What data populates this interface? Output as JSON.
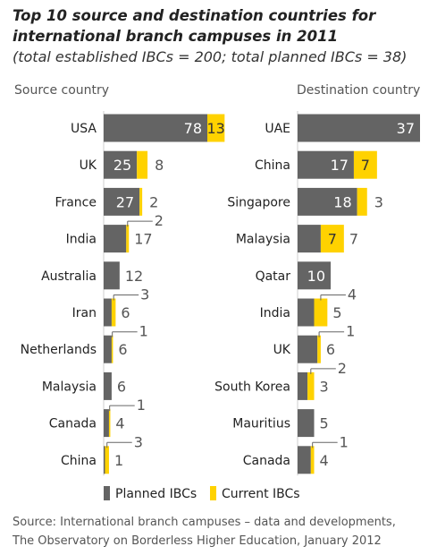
{
  "title": "Top 10 source and destination countries for international branch campuses in 2011",
  "subtitle": "(total established IBCs = 200; total planned IBCs = 38)",
  "source_country_header": "Source country",
  "destination_country_header": "Destination country",
  "legend": {
    "planned": "Planned IBCs",
    "current": "Current IBCs"
  },
  "source_note_line1": "Source: International branch campuses – data and developments,",
  "source_note_line2": "The Observatory on Borderless Higher Education, January 2012",
  "colors": {
    "planned": "#646464",
    "current": "#ffd200",
    "text": "#333333"
  },
  "chart_data": [
    {
      "type": "bar",
      "orientation": "horizontal",
      "stacked": true,
      "title": "Source country",
      "categories": [
        "USA",
        "UK",
        "France",
        "India",
        "Australia",
        "Iran",
        "Netherlands",
        "Malaysia",
        "Canada",
        "China"
      ],
      "series": [
        {
          "name": "Planned IBCs",
          "values": [
            78,
            25,
            27,
            17,
            12,
            6,
            6,
            6,
            4,
            1
          ]
        },
        {
          "name": "Current IBCs",
          "values": [
            13,
            8,
            2,
            2,
            0,
            3,
            1,
            0,
            1,
            3
          ]
        }
      ]
    },
    {
      "type": "bar",
      "orientation": "horizontal",
      "stacked": true,
      "title": "Destination country",
      "categories": [
        "UAE",
        "China",
        "Singapore",
        "Malaysia",
        "Qatar",
        "India",
        "UK",
        "South Korea",
        "Mauritius",
        "Canada"
      ],
      "series": [
        {
          "name": "Planned IBCs",
          "values": [
            37,
            17,
            18,
            7,
            10,
            5,
            6,
            3,
            5,
            4
          ]
        },
        {
          "name": "Current IBCs",
          "values": [
            0,
            7,
            3,
            7,
            0,
            4,
            1,
            2,
            0,
            1
          ]
        }
      ]
    }
  ]
}
